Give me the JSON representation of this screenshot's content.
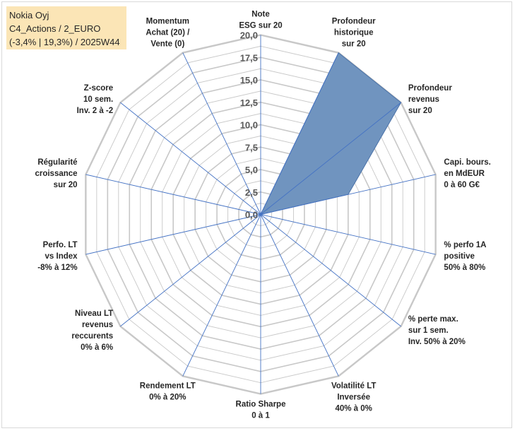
{
  "info": {
    "line1": "Nokia Oyj",
    "line2": "C4_Actions / 2_EURO",
    "line3": "(-3,4% | 19,3%) / 2025W44"
  },
  "colors": {
    "series_fill": "#7094bf",
    "series_stroke": "#4a72a8",
    "grid": "#c8c8c8",
    "spoke": "#4472c4",
    "info_bg": "#fbe5b6"
  },
  "chart_data": {
    "type": "radar",
    "grid": true,
    "rmin": 0,
    "rmax": 20,
    "ticks": [
      "0,0",
      "2,5",
      "5,0",
      "7,5",
      "10,0",
      "12,5",
      "15,0",
      "17,5",
      "20,0"
    ],
    "tick_values": [
      0,
      2.5,
      5,
      7.5,
      10,
      12.5,
      15,
      17.5,
      20
    ],
    "axes": [
      [
        "Note",
        "ESG sur 20"
      ],
      [
        "Profondeur",
        "historique",
        "sur 20"
      ],
      [
        "Profondeur",
        "revenus",
        "sur 20"
      ],
      [
        "Capi. bours.",
        "en MdEUR",
        "0 à 60 G€"
      ],
      [
        "% perfo 1A",
        "positive",
        "50% à 80%"
      ],
      [
        "% perte max.",
        "sur 1 sem.",
        "Inv. 50% à 20%"
      ],
      [
        "Volatilité LT",
        "Inversée",
        "40% à 0%"
      ],
      [
        "Ratio Sharpe",
        "0 à 1"
      ],
      [
        "Rendement LT",
        "0% à 20%"
      ],
      [
        "Niveau LT",
        "revenus",
        "reccurents",
        "0% à 6%"
      ],
      [
        "Perfo. LT",
        "vs Index",
        "-8% à 12%"
      ],
      [
        "Régularité",
        "croissance",
        "sur 20"
      ],
      [
        "Z-score",
        "10 sem.",
        "Inv. 2 à -2"
      ],
      [
        "Momentum",
        "Achat (20) /",
        "Vente (0)"
      ]
    ],
    "series": [
      {
        "values": [
          0,
          20,
          20,
          10,
          0,
          0,
          0,
          0,
          0,
          0,
          0,
          0,
          0,
          0
        ]
      }
    ]
  }
}
